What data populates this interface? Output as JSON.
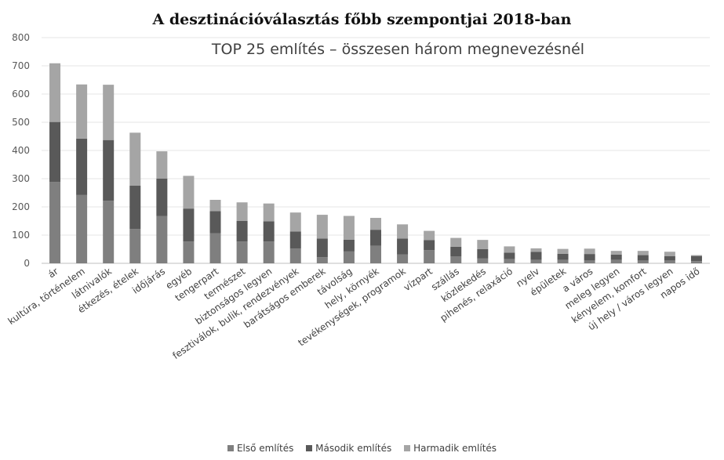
{
  "chart_data": {
    "type": "bar",
    "stacked": true,
    "title": "A desztinációválasztás főbb szempontjai 2018-ban",
    "subtitle": "TOP 25 említés – összesen három megnevezésnél",
    "xlabel": "",
    "ylabel": "",
    "ylim": [
      0,
      800
    ],
    "yticks": [
      0,
      100,
      200,
      300,
      400,
      500,
      600,
      700,
      800
    ],
    "grid": true,
    "legend_position": "bottom",
    "categories": [
      "ár",
      "kultúra, történelem",
      "látnivalók",
      "étkezés, ételek",
      "időjárás",
      "egyéb",
      "tengerpart",
      "természet",
      "biztonságos legyen",
      "fesztiválok, bulik, rendezvények",
      "barátságos emberek",
      "távolság",
      "hely, környék",
      "tevékenységek, programok",
      "vízpart",
      "szállás",
      "közlekedés",
      "pihenés, relaxáció",
      "nyelv",
      "épületek",
      "a város",
      "meleg legyen",
      "kényelem, komfort",
      "új hely / város legyen",
      "napos idő"
    ],
    "series": [
      {
        "name": "Első említés",
        "color": "#7f7f7f",
        "values": [
          288,
          242,
          222,
          122,
          168,
          77,
          107,
          77,
          77,
          52,
          22,
          42,
          62,
          32,
          47,
          25,
          17,
          15,
          12,
          12,
          10,
          12,
          10,
          10,
          8
        ]
      },
      {
        "name": "Második említés",
        "color": "#595959",
        "values": [
          213,
          200,
          215,
          153,
          132,
          117,
          78,
          73,
          72,
          61,
          66,
          42,
          57,
          56,
          35,
          34,
          33,
          23,
          29,
          22,
          23,
          19,
          19,
          15,
          18
        ]
      },
      {
        "name": "Harmadik említés",
        "color": "#a5a5a5",
        "values": [
          208,
          192,
          196,
          188,
          97,
          116,
          40,
          66,
          63,
          67,
          84,
          84,
          42,
          50,
          33,
          31,
          33,
          22,
          12,
          17,
          19,
          13,
          15,
          16,
          3
        ]
      }
    ]
  }
}
